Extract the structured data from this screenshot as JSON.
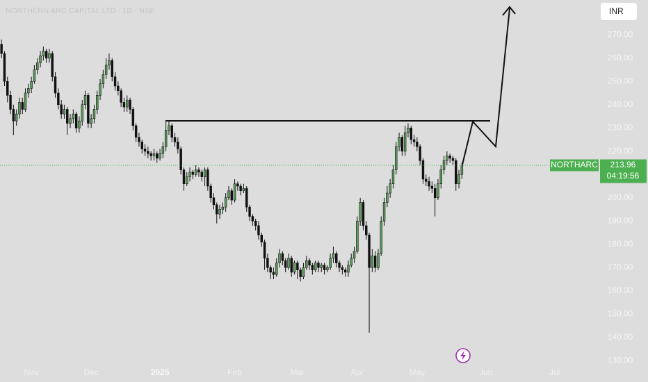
{
  "chart_data": {
    "type": "candlestick",
    "title": "NORTHERN ARC CAPITAL LTD · 1D · NSE",
    "currency": "INR",
    "symbol": "NORTHARC",
    "countdown": "04:19:56",
    "up_color": "#5c9e5c",
    "down_color": "#111111",
    "last_price_color": "#4caf50",
    "candles": [
      [
        266,
        268,
        260,
        262
      ],
      [
        262,
        263,
        248,
        250
      ],
      [
        250,
        252,
        241,
        244
      ],
      [
        244,
        246,
        236,
        238
      ],
      [
        238,
        240,
        227,
        233
      ],
      [
        233,
        238,
        231,
        236
      ],
      [
        236,
        243,
        234,
        241
      ],
      [
        241,
        243,
        236,
        238
      ],
      [
        238,
        247,
        237,
        245
      ],
      [
        245,
        249,
        243,
        247
      ],
      [
        247,
        252,
        245,
        250
      ],
      [
        250,
        257,
        249,
        255
      ],
      [
        255,
        260,
        253,
        258
      ],
      [
        258,
        263,
        256,
        261
      ],
      [
        261,
        265,
        259,
        263
      ],
      [
        263,
        264,
        258,
        260
      ],
      [
        260,
        264,
        258,
        262
      ],
      [
        262,
        263,
        250,
        252
      ],
      [
        252,
        254,
        243,
        245
      ],
      [
        245,
        247,
        238,
        240
      ],
      [
        240,
        242,
        234,
        236
      ],
      [
        236,
        240,
        234,
        238
      ],
      [
        238,
        239,
        227,
        232
      ],
      [
        232,
        236,
        230,
        234
      ],
      [
        234,
        238,
        232,
        236
      ],
      [
        236,
        237,
        228,
        230
      ],
      [
        230,
        235,
        228,
        233
      ],
      [
        233,
        242,
        231,
        240
      ],
      [
        240,
        246,
        238,
        244
      ],
      [
        244,
        245,
        230,
        232
      ],
      [
        232,
        236,
        230,
        234
      ],
      [
        234,
        240,
        232,
        238
      ],
      [
        238,
        246,
        236,
        244
      ],
      [
        244,
        251,
        242,
        249
      ],
      [
        249,
        255,
        247,
        253
      ],
      [
        253,
        260,
        251,
        257
      ],
      [
        257,
        262,
        255,
        259
      ],
      [
        259,
        260,
        250,
        252
      ],
      [
        252,
        254,
        246,
        248
      ],
      [
        248,
        250,
        244,
        246
      ],
      [
        246,
        247,
        239,
        241
      ],
      [
        241,
        243,
        237,
        239
      ],
      [
        239,
        244,
        237,
        242
      ],
      [
        242,
        243,
        236,
        238
      ],
      [
        238,
        239,
        229,
        231
      ],
      [
        231,
        232,
        224,
        226
      ],
      [
        226,
        228,
        222,
        224
      ],
      [
        224,
        225,
        219,
        221
      ],
      [
        221,
        223,
        218,
        220
      ],
      [
        220,
        222,
        217,
        219
      ],
      [
        219,
        220,
        216,
        218
      ],
      [
        218,
        221,
        216,
        219
      ],
      [
        219,
        220,
        215,
        217
      ],
      [
        217,
        221,
        216,
        219
      ],
      [
        219,
        224,
        217,
        222
      ],
      [
        222,
        233,
        220,
        229
      ],
      [
        229,
        233,
        227,
        231
      ],
      [
        231,
        232,
        224,
        226
      ],
      [
        226,
        228,
        222,
        224
      ],
      [
        224,
        226,
        219,
        221
      ],
      [
        221,
        222,
        210,
        212
      ],
      [
        212,
        213,
        203,
        206
      ],
      [
        206,
        211,
        205,
        209
      ],
      [
        209,
        213,
        207,
        211
      ],
      [
        211,
        212,
        208,
        210
      ],
      [
        210,
        214,
        209,
        212
      ],
      [
        212,
        213,
        209,
        211
      ],
      [
        211,
        212,
        207,
        209
      ],
      [
        209,
        213,
        205,
        212
      ],
      [
        212,
        213,
        203,
        205
      ],
      [
        205,
        206,
        198,
        200
      ],
      [
        200,
        202,
        195,
        197
      ],
      [
        197,
        198,
        189,
        193
      ],
      [
        193,
        197,
        191,
        195
      ],
      [
        195,
        198,
        193,
        196
      ],
      [
        196,
        202,
        194,
        200
      ],
      [
        200,
        205,
        199,
        203
      ],
      [
        203,
        204,
        197,
        199
      ],
      [
        199,
        208,
        198,
        206
      ],
      [
        206,
        207,
        203,
        205
      ],
      [
        205,
        206,
        201,
        203
      ],
      [
        203,
        206,
        202,
        204
      ],
      [
        204,
        205,
        194,
        196
      ],
      [
        196,
        197,
        190,
        192
      ],
      [
        192,
        193,
        188,
        190
      ],
      [
        190,
        191,
        186,
        188
      ],
      [
        188,
        190,
        182,
        184
      ],
      [
        184,
        185,
        179,
        181
      ],
      [
        181,
        182,
        169,
        174
      ],
      [
        174,
        176,
        168,
        170
      ],
      [
        170,
        171,
        165,
        168
      ],
      [
        168,
        170,
        165,
        167
      ],
      [
        167,
        174,
        166,
        172
      ],
      [
        172,
        178,
        170,
        176
      ],
      [
        176,
        177,
        171,
        173
      ],
      [
        173,
        174,
        168,
        170
      ],
      [
        170,
        176,
        169,
        174
      ],
      [
        174,
        175,
        166,
        168
      ],
      [
        168,
        173,
        167,
        172
      ],
      [
        172,
        173,
        165,
        169
      ],
      [
        169,
        170,
        164,
        166
      ],
      [
        166,
        172,
        165,
        170
      ],
      [
        170,
        175,
        169,
        173
      ],
      [
        173,
        174,
        169,
        171
      ],
      [
        171,
        172,
        167,
        169
      ],
      [
        169,
        173,
        168,
        172
      ],
      [
        172,
        173,
        168,
        170
      ],
      [
        170,
        172,
        168,
        171
      ],
      [
        171,
        172,
        167,
        169
      ],
      [
        169,
        171,
        168,
        170
      ],
      [
        170,
        176,
        169,
        174
      ],
      [
        174,
        179,
        172,
        176
      ],
      [
        176,
        177,
        170,
        172
      ],
      [
        172,
        173,
        168,
        170
      ],
      [
        170,
        171,
        167,
        169
      ],
      [
        169,
        170,
        166,
        168
      ],
      [
        168,
        173,
        166,
        171
      ],
      [
        171,
        176,
        170,
        174
      ],
      [
        174,
        179,
        172,
        177
      ],
      [
        177,
        192,
        176,
        190
      ],
      [
        190,
        200,
        188,
        198
      ],
      [
        198,
        199,
        186,
        188
      ],
      [
        188,
        190,
        182,
        184
      ],
      [
        184,
        185,
        142,
        170
      ],
      [
        170,
        178,
        168,
        175
      ],
      [
        175,
        177,
        168,
        170
      ],
      [
        170,
        178,
        169,
        176
      ],
      [
        176,
        192,
        175,
        190
      ],
      [
        190,
        200,
        188,
        198
      ],
      [
        198,
        205,
        196,
        202
      ],
      [
        202,
        208,
        200,
        206
      ],
      [
        206,
        214,
        204,
        212
      ],
      [
        212,
        224,
        210,
        222
      ],
      [
        222,
        228,
        220,
        226
      ],
      [
        226,
        227,
        218,
        220
      ],
      [
        220,
        231,
        218,
        228
      ],
      [
        228,
        232,
        226,
        230
      ],
      [
        230,
        231,
        223,
        225
      ],
      [
        225,
        227,
        222,
        224
      ],
      [
        224,
        226,
        220,
        222
      ],
      [
        222,
        223,
        214,
        216
      ],
      [
        216,
        217,
        206,
        208
      ],
      [
        208,
        210,
        205,
        207
      ],
      [
        207,
        209,
        203,
        205
      ],
      [
        205,
        207,
        202,
        204
      ],
      [
        204,
        206,
        192,
        200
      ],
      [
        200,
        208,
        199,
        206
      ],
      [
        206,
        214,
        204,
        212
      ],
      [
        212,
        218,
        210,
        216
      ],
      [
        216,
        220,
        214,
        218
      ],
      [
        218,
        219,
        215,
        217
      ],
      [
        217,
        218,
        214,
        216
      ],
      [
        216,
        217,
        203,
        206
      ],
      [
        206,
        212,
        204,
        210
      ],
      [
        210,
        215,
        208,
        213.96
      ]
    ],
    "xlim": [
      -0.5,
      199.5
    ],
    "xticks": [
      {
        "value": 10,
        "label": "Nov"
      },
      {
        "value": 30,
        "label": "Dec"
      },
      {
        "value": 53,
        "label": "2025"
      },
      {
        "value": 78,
        "label": "Feb"
      },
      {
        "value": 99,
        "label": "Mar"
      },
      {
        "value": 119,
        "label": "Apr"
      },
      {
        "value": 139,
        "label": "May"
      },
      {
        "value": 162,
        "label": "Jun"
      },
      {
        "value": 185,
        "label": "Jul"
      }
    ],
    "ylim": [
      125,
      285
    ],
    "yticks": [
      {
        "value": 130,
        "label": "130.00"
      },
      {
        "value": 140,
        "label": "140.00"
      },
      {
        "value": 150,
        "label": "150.00"
      },
      {
        "value": 160,
        "label": "160.00"
      },
      {
        "value": 170,
        "label": "170.00"
      },
      {
        "value": 180,
        "label": "180.00"
      },
      {
        "value": 190,
        "label": "190.00"
      },
      {
        "value": 200,
        "label": "200.00"
      },
      {
        "value": 210,
        "label": "210.00"
      },
      {
        "value": 220,
        "label": "220.00"
      },
      {
        "value": 230,
        "label": "230.00"
      },
      {
        "value": 240,
        "label": "240.00"
      },
      {
        "value": 250,
        "label": "250.00"
      },
      {
        "value": 260,
        "label": "260.00"
      },
      {
        "value": 270,
        "label": "270.00"
      }
    ]
  }
}
